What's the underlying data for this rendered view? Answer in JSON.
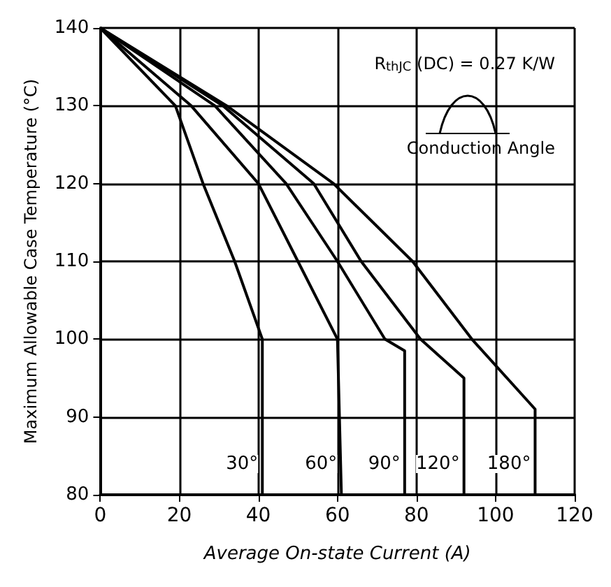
{
  "chart_data": {
    "type": "line",
    "xlabel": "Average On-state Current (A)",
    "ylabel": "Maximum Allowable Case Temperature (°C)",
    "xlim": [
      0,
      120
    ],
    "xticks": [
      0,
      20,
      40,
      60,
      80,
      100,
      120
    ],
    "ylim": [
      80,
      140
    ],
    "yticks": [
      80,
      90,
      100,
      110,
      120,
      130,
      140
    ],
    "grid": true,
    "legend": false,
    "marker": "none",
    "line_style": "solid",
    "annotations": [
      "R$_{thJC}$ (DC) = 0.27 K/W",
      "Conduction Angle"
    ],
    "series": [
      {
        "name": "30°",
        "color": "#000000",
        "x": [
          0,
          19,
          26,
          34,
          41,
          41
        ],
        "values": [
          140,
          130,
          120,
          110,
          100,
          80
        ]
      },
      {
        "name": "60°",
        "color": "#000000",
        "x": [
          0,
          23,
          40,
          50,
          60,
          61
        ],
        "values": [
          140,
          130,
          120,
          110,
          100,
          80
        ]
      },
      {
        "name": "90°",
        "color": "#000000",
        "x": [
          0,
          29,
          47,
          60,
          72,
          77,
          77
        ],
        "values": [
          140,
          130,
          120,
          110,
          100,
          98.5,
          80
        ]
      },
      {
        "name": "120°",
        "color": "#000000",
        "x": [
          0,
          31,
          54,
          66,
          81,
          92,
          92
        ],
        "values": [
          140,
          130,
          120,
          110,
          100,
          95,
          80
        ]
      },
      {
        "name": "180°",
        "color": "#000000",
        "x": [
          0,
          32,
          59,
          79,
          94,
          110,
          110
        ],
        "values": [
          140,
          130,
          120,
          110,
          100,
          91,
          80
        ]
      }
    ]
  }
}
